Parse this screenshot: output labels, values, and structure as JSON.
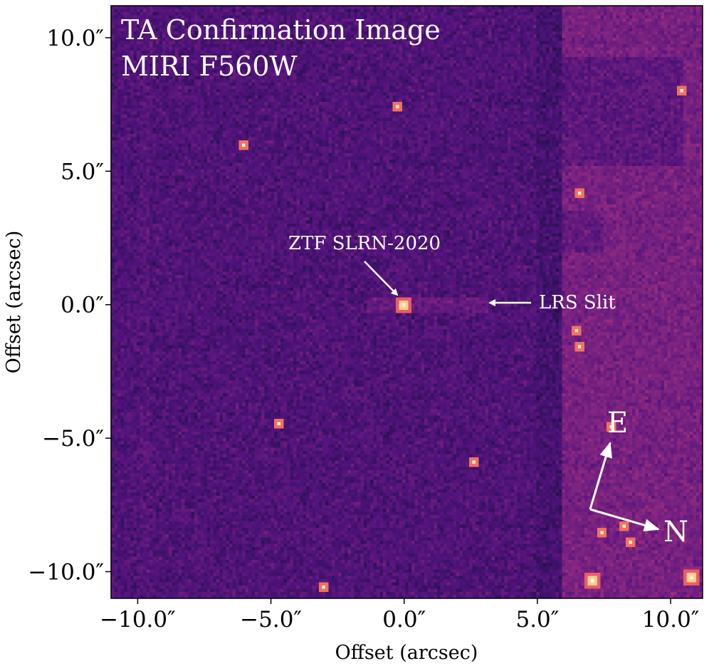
{
  "chart_data": {
    "type": "heatmap",
    "title": "TA Confirmation Image",
    "subtitle": "MIRI F560W",
    "xlabel": "Offset (arcsec)",
    "ylabel": "Offset (arcsec)",
    "xlim": [
      -11.0,
      11.2
    ],
    "ylim": [
      -11.0,
      11.2
    ],
    "xticks": [
      -10,
      -5,
      0,
      5,
      10
    ],
    "yticks": [
      -10,
      -5,
      0,
      5,
      10
    ],
    "xtick_labels": [
      "−10.0″",
      "−5.0″",
      "0.0″",
      "5.0″",
      "10.0″"
    ],
    "ytick_labels": [
      "−10.0″",
      "−5.0″",
      "0.0″",
      "5.0″",
      "10.0″"
    ],
    "colormap": "magma",
    "grid": false,
    "annotations": {
      "target": {
        "text": "ZTF SLRN-2020",
        "x": 0.0,
        "y": 0.0
      },
      "slit": {
        "text": "LRS Slit",
        "x": 3.0,
        "y": 0.0
      },
      "east": {
        "text": "E"
      },
      "north": {
        "text": "N"
      }
    },
    "sources": [
      {
        "x": 0.0,
        "y": 0.0
      },
      {
        "x": 7.0,
        "y": -10.3
      },
      {
        "x": 10.8,
        "y": -10.2
      },
      {
        "x": 7.8,
        "y": -4.6
      },
      {
        "x": 8.2,
        "y": -8.3
      },
      {
        "x": 8.5,
        "y": -8.9
      },
      {
        "x": 6.6,
        "y": -1.6
      },
      {
        "x": 6.6,
        "y": 4.2
      },
      {
        "x": 10.4,
        "y": 8.0
      },
      {
        "x": -3.0,
        "y": -10.6
      },
      {
        "x": 2.6,
        "y": -5.9
      },
      {
        "x": -4.7,
        "y": -4.5
      },
      {
        "x": -6.0,
        "y": 6.0
      },
      {
        "x": -0.3,
        "y": 7.4
      },
      {
        "x": 6.4,
        "y": -1.0
      },
      {
        "x": 7.4,
        "y": -8.6
      }
    ]
  }
}
